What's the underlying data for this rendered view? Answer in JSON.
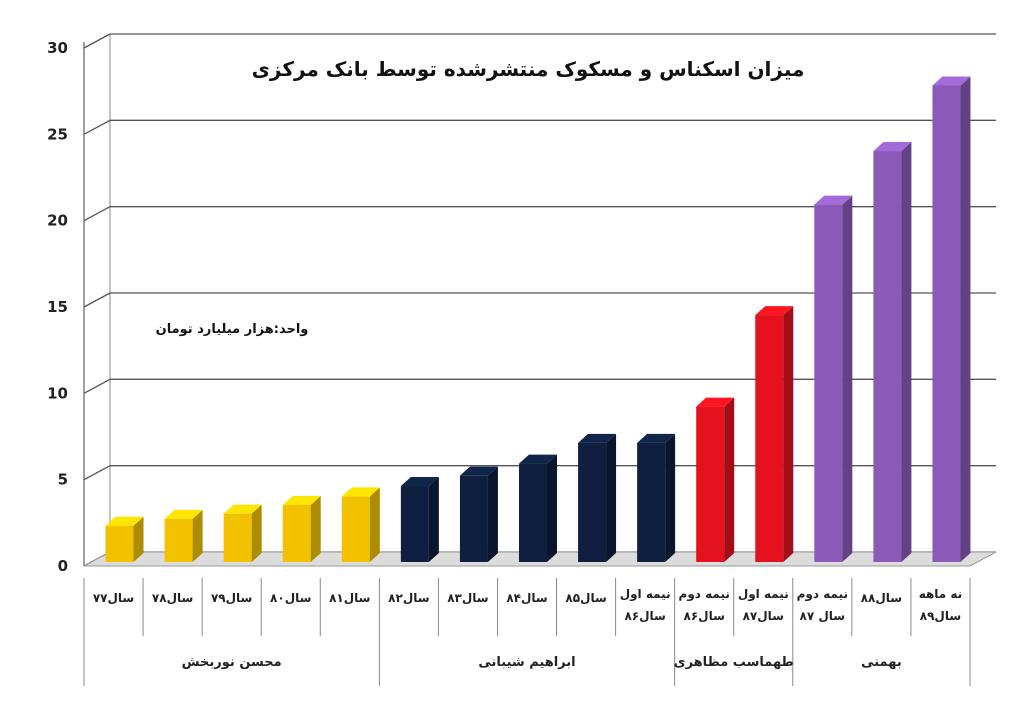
{
  "chart_data": {
    "type": "bar",
    "title": "میزان اسکناس و مسکوک منتشرشده توسط بانک مرکزی",
    "unit_label": "واحد:هزار میلیارد تومان",
    "ylim": [
      0,
      30
    ],
    "yticks": [
      "0",
      "5",
      "10",
      "15",
      "20",
      "25",
      "30"
    ],
    "grid": true,
    "categories": [
      {
        "label": [
          "سال۷۷"
        ],
        "value": 2.1,
        "color": "#F2C200",
        "group": 0
      },
      {
        "label": [
          "سال۷۸"
        ],
        "value": 2.5,
        "color": "#F2C200",
        "group": 0
      },
      {
        "label": [
          "سال۷۹"
        ],
        "value": 2.8,
        "color": "#F2C200",
        "group": 0
      },
      {
        "label": [
          "سال۸۰"
        ],
        "value": 3.3,
        "color": "#F2C200",
        "group": 0
      },
      {
        "label": [
          "سال۸۱"
        ],
        "value": 3.8,
        "color": "#F2C200",
        "group": 0
      },
      {
        "label": [
          "سال۸۲"
        ],
        "value": 4.4,
        "color": "#0E1F3F",
        "group": 1
      },
      {
        "label": [
          "سال۸۳"
        ],
        "value": 5.0,
        "color": "#0E1F3F",
        "group": 1
      },
      {
        "label": [
          "سال۸۴"
        ],
        "value": 5.7,
        "color": "#0E1F3F",
        "group": 1
      },
      {
        "label": [
          "سال۸۵"
        ],
        "value": 6.9,
        "color": "#0E1F3F",
        "group": 1
      },
      {
        "label": [
          "نیمه اول",
          "سال۸۶"
        ],
        "value": 6.9,
        "color": "#0E1F3F",
        "group": 1
      },
      {
        "label": [
          "نیمه دوم",
          "سال۸۶"
        ],
        "value": 9.0,
        "color": "#E3121E",
        "group": 2
      },
      {
        "label": [
          "نیمه اول",
          "سال۸۷"
        ],
        "value": 14.3,
        "color": "#E3121E",
        "group": 2
      },
      {
        "label": [
          "نیمه دوم",
          "سال ۸۷"
        ],
        "value": 20.7,
        "color": "#8B5AB8",
        "group": 3
      },
      {
        "label": [
          "سال۸۸"
        ],
        "value": 23.8,
        "color": "#8B5AB8",
        "group": 3
      },
      {
        "label": [
          "نه ماهه",
          "سال۸۹"
        ],
        "value": 27.6,
        "color": "#8B5AB8",
        "group": 3
      }
    ],
    "groups": [
      {
        "label": "محسن نوربخش"
      },
      {
        "label": "ابراهیم شیبانی"
      },
      {
        "label": "طهماسب مظاهری"
      },
      {
        "label": "بهمنی"
      }
    ]
  }
}
